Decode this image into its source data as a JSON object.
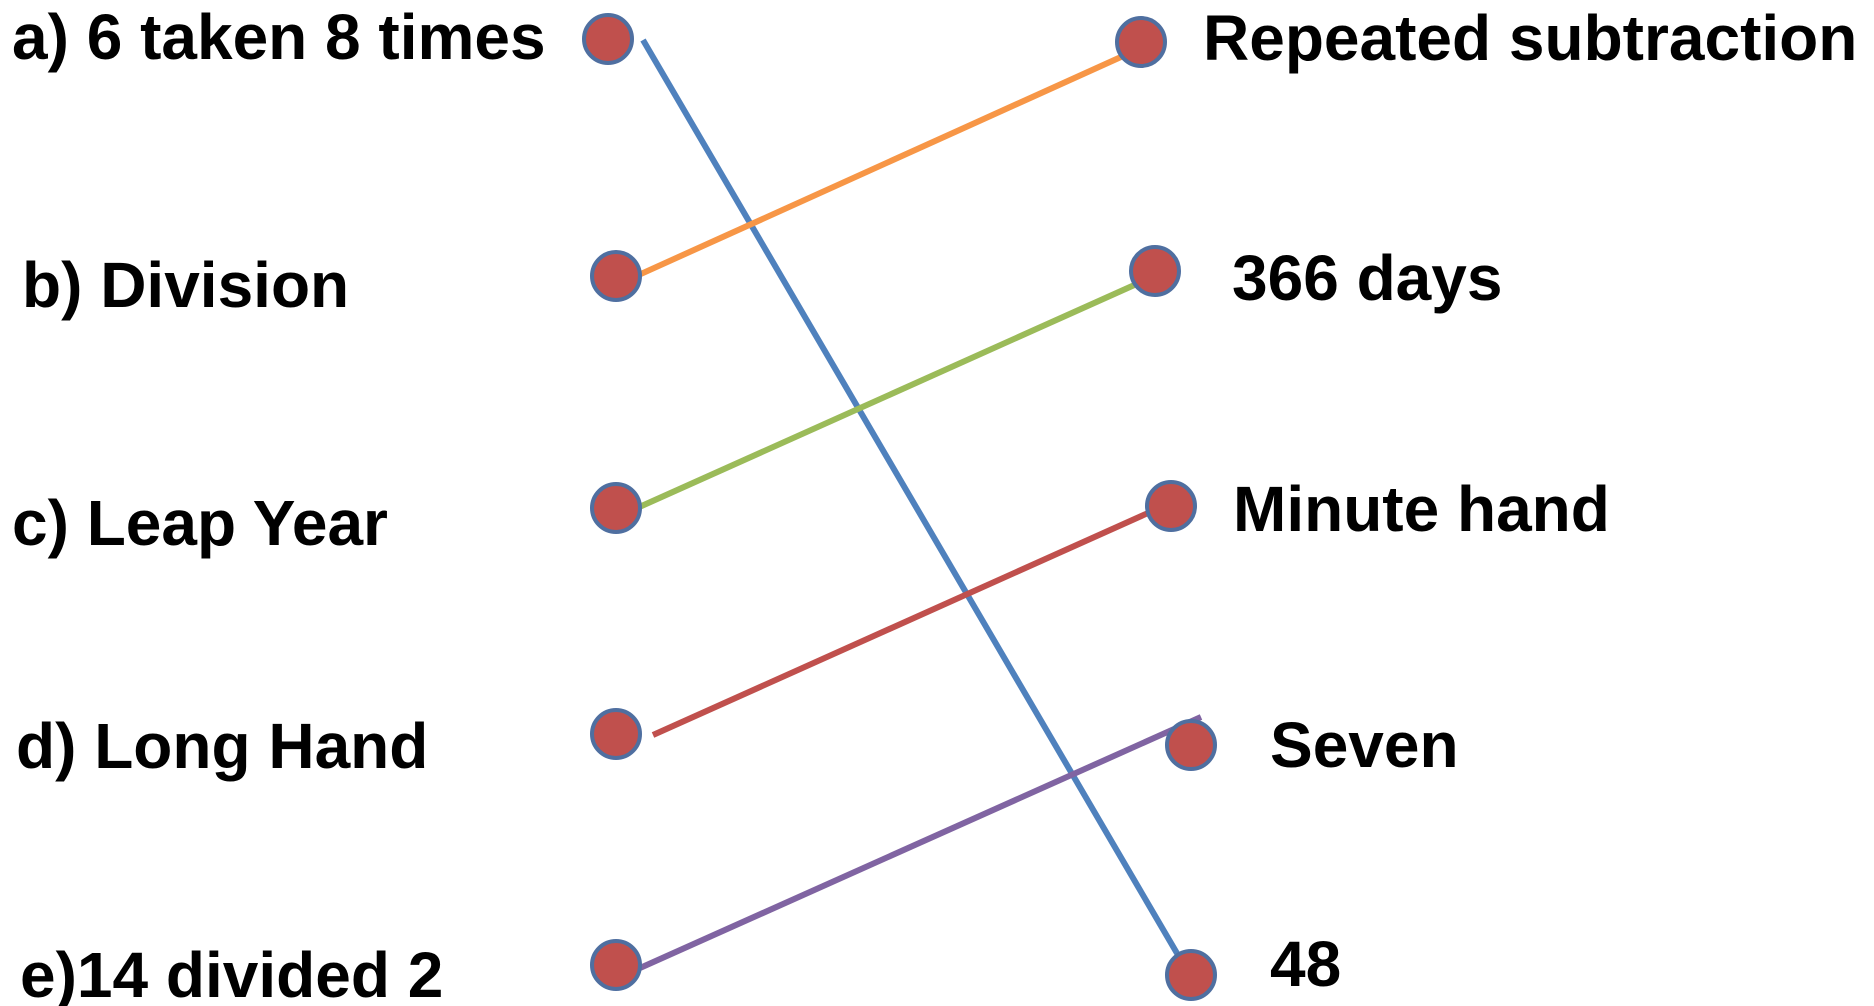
{
  "left_items": [
    {
      "id": "a",
      "text": "a) 6 taken 8 times"
    },
    {
      "id": "b",
      "text": "b) Division"
    },
    {
      "id": "c",
      "text": "c) Leap Year"
    },
    {
      "id": "d",
      "text": "d) Long Hand"
    },
    {
      "id": "e",
      "text": "e)14 divided 2"
    }
  ],
  "right_items": [
    {
      "id": "r1",
      "text": "Repeated subtraction"
    },
    {
      "id": "r2",
      "text": "366 days"
    },
    {
      "id": "r3",
      "text": "Minute hand"
    },
    {
      "id": "r4",
      "text": "Seven"
    },
    {
      "id": "r5",
      "text": "48"
    }
  ],
  "connections": [
    {
      "from": "a",
      "to": "r5",
      "color": "#4F81BD"
    },
    {
      "from": "b",
      "to": "r1",
      "color": "#F79646"
    },
    {
      "from": "c",
      "to": "r2",
      "color": "#9BBB59"
    },
    {
      "from": "d",
      "to": "r3",
      "color": "#C0504D"
    },
    {
      "from": "e",
      "to": "r4",
      "color": "#8064A2"
    }
  ],
  "dot_style": {
    "fill": "#C0504D",
    "stroke": "#4F6FA0"
  }
}
